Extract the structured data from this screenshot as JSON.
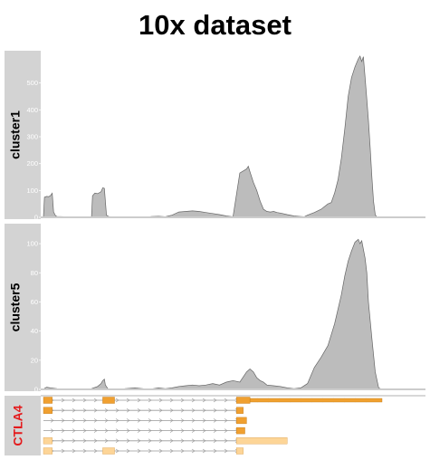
{
  "title": "10x dataset",
  "chart_data": {
    "type": "area",
    "title": "10x dataset",
    "xlabel": "",
    "ylabel": "",
    "x_range": [
      0,
      100
    ],
    "panels": [
      {
        "name": "cluster1",
        "ylim": [
          0,
          600
        ],
        "yticks": [
          0,
          100,
          200,
          300,
          400,
          500
        ],
        "series": {
          "x": [
            0,
            0.3,
            1,
            1.5,
            2,
            2.6,
            3,
            3.6,
            4,
            6,
            10,
            14.2,
            14.5,
            15.2,
            16,
            17,
            17.5,
            18,
            18.3,
            18.6,
            19.2,
            21,
            30,
            32,
            34,
            36,
            38,
            40,
            42,
            44,
            46,
            48,
            50,
            52,
            54,
            56,
            58,
            60,
            60.5,
            61,
            62,
            63,
            64,
            65,
            66,
            67,
            68,
            69,
            70,
            72,
            74,
            76,
            77,
            78,
            80,
            82,
            84,
            85,
            86,
            87,
            88,
            89,
            90,
            91,
            92,
            93,
            93.5,
            94,
            94.5,
            95,
            95.5,
            96,
            96.5,
            97,
            97.5,
            98,
            98.5,
            99,
            100
          ],
          "y": [
            0,
            75,
            78,
            77,
            80,
            90,
            20,
            5,
            3,
            2,
            1,
            2,
            80,
            90,
            88,
            95,
            110,
            108,
            60,
            8,
            3,
            0,
            0,
            3,
            4,
            2,
            8,
            20,
            22,
            24,
            22,
            18,
            14,
            10,
            5,
            2,
            165,
            180,
            190,
            170,
            130,
            100,
            60,
            30,
            22,
            20,
            22,
            18,
            16,
            10,
            5,
            3,
            2,
            8,
            18,
            30,
            50,
            55,
            90,
            140,
            220,
            330,
            450,
            520,
            560,
            590,
            600,
            580,
            598,
            520,
            440,
            360,
            260,
            150,
            60,
            10,
            0,
            0,
            0
          ]
        }
      },
      {
        "name": "cluster5",
        "ylim": [
          0,
          110
        ],
        "yticks": [
          0,
          20,
          40,
          60,
          80,
          100
        ],
        "series": {
          "x": [
            0,
            0.5,
            1,
            2,
            4,
            6,
            10,
            14,
            16,
            17,
            17.5,
            18,
            18.3,
            19,
            21,
            24,
            27,
            30,
            32,
            34,
            36,
            38,
            40,
            42,
            44,
            46,
            48,
            50,
            52,
            54,
            56,
            58,
            60,
            61,
            62,
            63,
            64,
            65,
            66,
            68,
            70,
            72,
            74,
            76,
            78,
            80,
            82,
            84,
            86,
            88,
            89,
            90,
            91,
            92,
            93,
            93.5,
            94,
            95,
            95.5,
            96,
            97,
            98,
            99,
            100
          ],
          "y": [
            0,
            1,
            1.5,
            1,
            0.5,
            0.3,
            0.3,
            0.3,
            2,
            4,
            6,
            7,
            3,
            0.5,
            0.3,
            0.5,
            1,
            0.3,
            0.3,
            1,
            0.5,
            1,
            2,
            2.5,
            3,
            2.5,
            3,
            4,
            3,
            5,
            6,
            5,
            12,
            14,
            12,
            8,
            6,
            5,
            3,
            2.5,
            2,
            1,
            0.5,
            1,
            4,
            15,
            22,
            30,
            45,
            65,
            78,
            88,
            95,
            101,
            103,
            100,
            102,
            90,
            80,
            60,
            35,
            12,
            1,
            0
          ]
        }
      }
    ],
    "gene_track": {
      "gene": "CTLA4",
      "exon_color": "#f0a030",
      "utr_color": "#fdd597",
      "transcripts": [
        {
          "style": "coding",
          "start": 0,
          "end": 100,
          "exons": [
            [
              0,
              2.6
            ],
            [
              17.5,
              21
            ],
            [
              57,
              61
            ],
            [
              61,
              100
            ]
          ]
        },
        {
          "style": "coding",
          "start": 0,
          "end": 59,
          "exons": [
            [
              0,
              2.6
            ],
            [
              57,
              59
            ]
          ]
        },
        {
          "style": "coding",
          "start": 0,
          "end": 60,
          "exons": [
            [
              57,
              60
            ]
          ]
        },
        {
          "style": "coding",
          "start": 0,
          "end": 59.5,
          "exons": [
            [
              57,
              59.5
            ]
          ]
        },
        {
          "style": "utr",
          "start": 0,
          "end": 72,
          "exons": [
            [
              0,
              2.6
            ],
            [
              57,
              72
            ]
          ]
        },
        {
          "style": "utr",
          "start": 0,
          "end": 59,
          "exons": [
            [
              0,
              2.6
            ],
            [
              17.5,
              21
            ],
            [
              57,
              59
            ]
          ]
        }
      ]
    },
    "colors": {
      "area_fill": "#bcbcbc",
      "area_stroke": "#666666",
      "strip_bg": "#d3d3d3",
      "axis_color": "#cccccc"
    }
  }
}
